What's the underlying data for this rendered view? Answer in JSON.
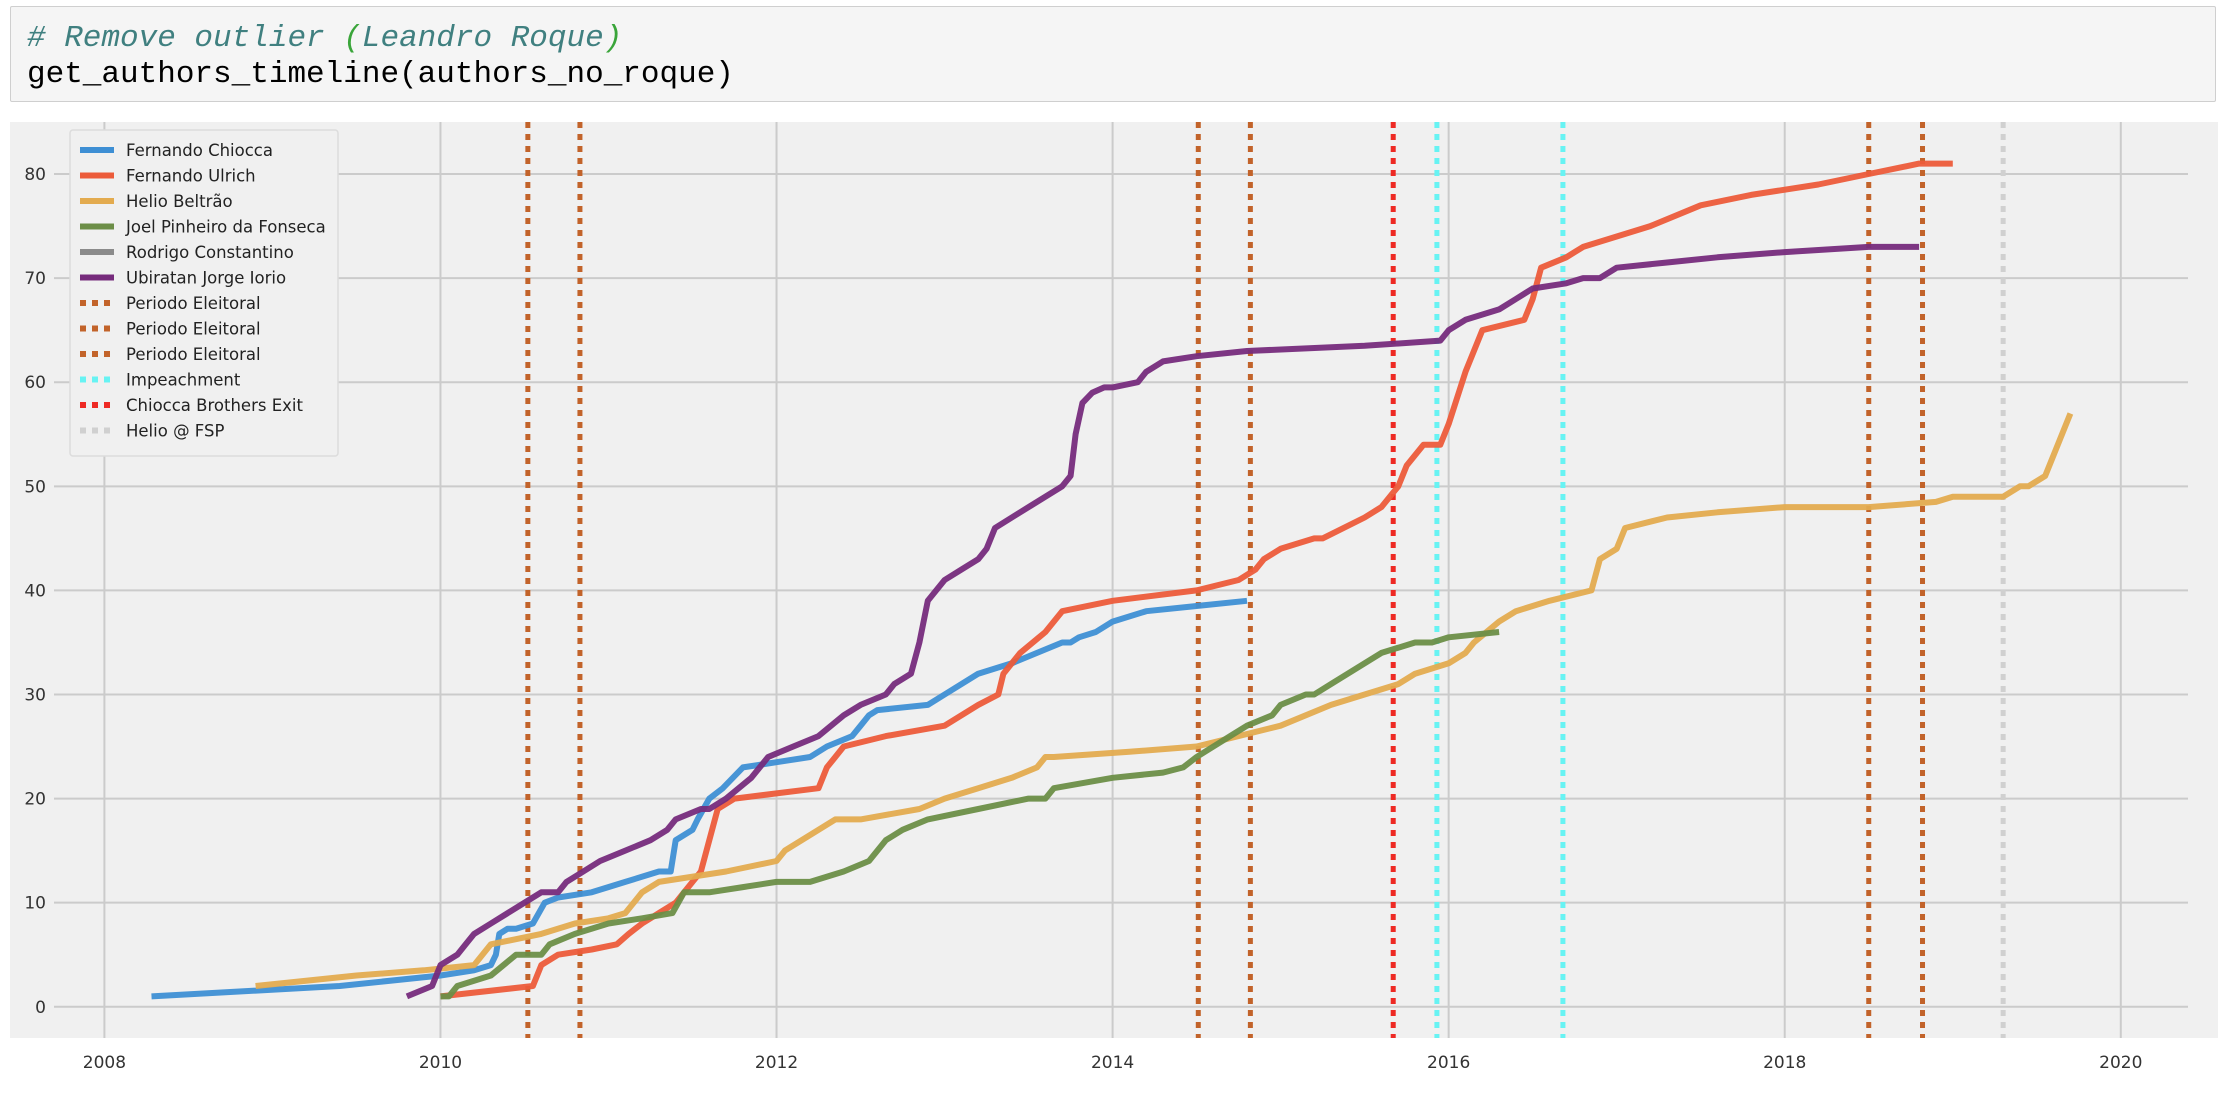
{
  "code_cell": {
    "comment_hash": "# Remove outlier ",
    "comment_paren_open": "(",
    "comment_name": "Leandro Roque",
    "comment_paren_close": ")",
    "code_line": "get_authors_timeline(authors_no_roque)"
  },
  "chart_data": {
    "type": "line",
    "title": "",
    "xlabel": "",
    "ylabel": "",
    "xlim": [
      2007.7,
      2020.4
    ],
    "ylim": [
      -3,
      85
    ],
    "xticks": [
      2008,
      2010,
      2012,
      2014,
      2016,
      2018,
      2020
    ],
    "yticks": [
      0,
      10,
      20,
      30,
      40,
      50,
      60,
      70,
      80
    ],
    "grid": true,
    "legend_position": "top-left",
    "colors": {
      "background": "#f0f0f0",
      "grid": "#cbcbcb",
      "fernando_chiocca": "#3e8fd4",
      "fernando_ulrich": "#ec5b3a",
      "helio_beltrao": "#e3ab4f",
      "joel_pinheiro": "#6c8e47",
      "rodrigo_constantino": "#8b8b8b",
      "ubiratan_iorio": "#762b7c",
      "periodo_eleitoral": "#c2632a",
      "impeachment": "#67f3f3",
      "chiocca_exit": "#ee2a24",
      "helio_fsp": "#d0d0d0"
    },
    "series": [
      {
        "name": "Fernando Chiocca",
        "color": "#3e8fd4",
        "x": [
          2008.28,
          2009.4,
          2010.0,
          2010.2,
          2010.3,
          2010.33,
          2010.35,
          2010.4,
          2010.45,
          2010.55,
          2010.62,
          2010.7,
          2010.9,
          2011.1,
          2011.3,
          2011.37,
          2011.4,
          2011.5,
          2011.53,
          2011.6,
          2011.68,
          2011.8,
          2012.0,
          2012.2,
          2012.3,
          2012.45,
          2012.5,
          2012.55,
          2012.6,
          2012.9,
          2013.0,
          2013.2,
          2013.4,
          2013.55,
          2013.7,
          2013.75,
          2013.8,
          2013.9,
          2014.0,
          2014.2,
          2014.5,
          2014.8
        ],
        "y": [
          1,
          2,
          3,
          3.5,
          4,
          5,
          7,
          7.5,
          7.5,
          8,
          10,
          10.5,
          11,
          12,
          13,
          13,
          16,
          17,
          18,
          20,
          21,
          23,
          23.5,
          24,
          25,
          26,
          27,
          28,
          28.5,
          29,
          30,
          32,
          33,
          34,
          35,
          35,
          35.5,
          36,
          37,
          38,
          38.5,
          39
        ]
      },
      {
        "name": "Fernando Ulrich",
        "color": "#ec5b3a",
        "x": [
          2010.0,
          2010.55,
          2010.6,
          2010.7,
          2010.9,
          2011.05,
          2011.12,
          2011.2,
          2011.3,
          2011.4,
          2011.45,
          2011.5,
          2011.55,
          2011.6,
          2011.65,
          2011.75,
          2012.0,
          2012.25,
          2012.3,
          2012.35,
          2012.4,
          2012.65,
          2013.0,
          2013.2,
          2013.32,
          2013.35,
          2013.45,
          2013.6,
          2013.7,
          2014.0,
          2014.5,
          2014.75,
          2014.85,
          2014.9,
          2015.0,
          2015.2,
          2015.25,
          2015.5,
          2015.6,
          2015.7,
          2015.75,
          2015.85,
          2015.95,
          2016.0,
          2016.1,
          2016.2,
          2016.45,
          2016.5,
          2016.55,
          2016.7,
          2016.75,
          2016.8,
          2017.0,
          2017.2,
          2017.5,
          2017.8,
          2018.2,
          2018.5,
          2018.8,
          2019.0
        ],
        "y": [
          1,
          2,
          4,
          5,
          5.5,
          6,
          7,
          8,
          9,
          10,
          11,
          12,
          13,
          16,
          19,
          20,
          20.5,
          21,
          23,
          24,
          25,
          26,
          27,
          29,
          30,
          32,
          34,
          36,
          38,
          39,
          40,
          41,
          42,
          43,
          44,
          45,
          45,
          47,
          48,
          50,
          52,
          54,
          54,
          56,
          61,
          65,
          66,
          68,
          71,
          72,
          72.5,
          73,
          74,
          75,
          77,
          78,
          79,
          80,
          81,
          81
        ]
      },
      {
        "name": "Helio Beltrão",
        "color": "#e3ab4f",
        "x": [
          2008.9,
          2009.5,
          2009.9,
          2010.2,
          2010.3,
          2010.6,
          2010.8,
          2011.0,
          2011.1,
          2011.15,
          2011.2,
          2011.3,
          2011.7,
          2012.0,
          2012.05,
          2012.15,
          2012.25,
          2012.35,
          2012.5,
          2012.85,
          2013.0,
          2013.2,
          2013.4,
          2013.55,
          2013.6,
          2013.65,
          2014.1,
          2014.5,
          2015.0,
          2015.3,
          2015.5,
          2015.7,
          2015.8,
          2016.0,
          2016.1,
          2016.15,
          2016.3,
          2016.4,
          2016.6,
          2016.85,
          2016.9,
          2017.0,
          2017.05,
          2017.3,
          2017.6,
          2018.0,
          2018.5,
          2018.9,
          2019.0,
          2019.3,
          2019.4,
          2019.45,
          2019.55,
          2019.6,
          2019.7
        ],
        "y": [
          2,
          3,
          3.5,
          4,
          6,
          7,
          8,
          8.5,
          9,
          10,
          11,
          12,
          13,
          14,
          15,
          16,
          17,
          18,
          18,
          19,
          20,
          21,
          22,
          23,
          24,
          24,
          24.5,
          25,
          27,
          29,
          30,
          31,
          32,
          33,
          34,
          35,
          37,
          38,
          39,
          40,
          43,
          44,
          46,
          47,
          47.5,
          48,
          48,
          48.5,
          49,
          49,
          50,
          50,
          51,
          53,
          57
        ]
      },
      {
        "name": "Joel Pinheiro da Fonseca",
        "color": "#6c8e47",
        "x": [
          2010.0,
          2010.05,
          2010.1,
          2010.3,
          2010.45,
          2010.6,
          2010.65,
          2010.8,
          2011.0,
          2011.2,
          2011.38,
          2011.45,
          2011.6,
          2011.8,
          2012.0,
          2012.2,
          2012.4,
          2012.55,
          2012.65,
          2012.75,
          2012.9,
          2013.2,
          2013.5,
          2013.6,
          2013.65,
          2014.0,
          2014.3,
          2014.42,
          2014.5,
          2014.6,
          2014.7,
          2014.8,
          2014.95,
          2015.0,
          2015.15,
          2015.2,
          2015.3,
          2015.4,
          2015.5,
          2015.6,
          2015.8,
          2015.9,
          2016.0,
          2016.3
        ],
        "y": [
          1,
          1,
          2,
          3,
          5,
          5,
          6,
          7,
          8,
          8.5,
          9,
          11,
          11,
          11.5,
          12,
          12,
          13,
          14,
          16,
          17,
          18,
          19,
          20,
          20,
          21,
          22,
          22.5,
          23,
          24,
          25,
          26,
          27,
          28,
          29,
          30,
          30,
          31,
          32,
          33,
          34,
          35,
          35,
          35.5,
          36
        ]
      },
      {
        "name": "Ubiratan Jorge Iorio",
        "color": "#762b7c",
        "x": [
          2009.8,
          2009.95,
          2010.0,
          2010.1,
          2010.15,
          2010.2,
          2010.3,
          2010.4,
          2010.5,
          2010.6,
          2010.7,
          2010.75,
          2010.85,
          2010.95,
          2011.1,
          2011.25,
          2011.35,
          2011.4,
          2011.55,
          2011.6,
          2011.7,
          2011.85,
          2011.95,
          2012.1,
          2012.25,
          2012.4,
          2012.5,
          2012.65,
          2012.7,
          2012.8,
          2012.85,
          2012.9,
          2013.0,
          2013.1,
          2013.2,
          2013.25,
          2013.3,
          2013.4,
          2013.5,
          2013.6,
          2013.7,
          2013.75,
          2013.78,
          2013.82,
          2013.88,
          2013.95,
          2014.0,
          2014.15,
          2014.2,
          2014.3,
          2014.5,
          2014.8,
          2015.5,
          2015.95,
          2016.0,
          2016.1,
          2016.3,
          2016.4,
          2016.5,
          2016.7,
          2016.8,
          2016.9,
          2017.0,
          2017.3,
          2017.6,
          2018.0,
          2018.5,
          2018.8
        ],
        "y": [
          1,
          2,
          4,
          5,
          6,
          7,
          8,
          9,
          10,
          11,
          11,
          12,
          13,
          14,
          15,
          16,
          17,
          18,
          19,
          19,
          20,
          22,
          24,
          25,
          26,
          28,
          29,
          30,
          31,
          32,
          35,
          39,
          41,
          42,
          43,
          44,
          46,
          47,
          48,
          49,
          50,
          51,
          55,
          58,
          59,
          59.5,
          59.5,
          60,
          61,
          62,
          62.5,
          63,
          63.5,
          64,
          65,
          66,
          67,
          68,
          69,
          69.5,
          70,
          70,
          71,
          71.5,
          72,
          72.5,
          73,
          73
        ]
      },
      {
        "name": "Rodrigo Constantino",
        "color": "#8b8b8b",
        "x": [],
        "y": []
      }
    ],
    "vlines": [
      {
        "name": "Periodo Eleitoral",
        "color": "#c2632a",
        "x": [
          2010.52,
          2010.83
        ]
      },
      {
        "name": "Periodo Eleitoral",
        "color": "#c2632a",
        "x": [
          2014.51,
          2014.82
        ]
      },
      {
        "name": "Periodo Eleitoral",
        "color": "#c2632a",
        "x": [
          2018.5,
          2018.82
        ]
      },
      {
        "name": "Impeachment",
        "color": "#67f3f3",
        "x": [
          2015.93,
          2016.68
        ]
      },
      {
        "name": "Chiocca Brothers Exit",
        "color": "#ee2a24",
        "x": [
          2015.67
        ]
      },
      {
        "name": "Helio @ FSP",
        "color": "#d0d0d0",
        "x": [
          2019.3
        ]
      }
    ],
    "legend": [
      {
        "label": "Fernando Chiocca",
        "color": "#3e8fd4",
        "style": "solid"
      },
      {
        "label": "Fernando Ulrich",
        "color": "#ec5b3a",
        "style": "solid"
      },
      {
        "label": "Helio Beltrão",
        "color": "#e3ab4f",
        "style": "solid"
      },
      {
        "label": "Joel Pinheiro da Fonseca",
        "color": "#6c8e47",
        "style": "solid"
      },
      {
        "label": "Rodrigo Constantino",
        "color": "#8b8b8b",
        "style": "solid"
      },
      {
        "label": "Ubiratan Jorge Iorio",
        "color": "#762b7c",
        "style": "solid"
      },
      {
        "label": "Periodo Eleitoral",
        "color": "#c2632a",
        "style": "dotted"
      },
      {
        "label": "Periodo Eleitoral",
        "color": "#c2632a",
        "style": "dotted"
      },
      {
        "label": "Periodo Eleitoral",
        "color": "#c2632a",
        "style": "dotted"
      },
      {
        "label": "Impeachment",
        "color": "#67f3f3",
        "style": "dotted"
      },
      {
        "label": "Chiocca Brothers Exit",
        "color": "#ee2a24",
        "style": "dotted"
      },
      {
        "label": "Helio @ FSP",
        "color": "#d0d0d0",
        "style": "dotted"
      }
    ]
  }
}
